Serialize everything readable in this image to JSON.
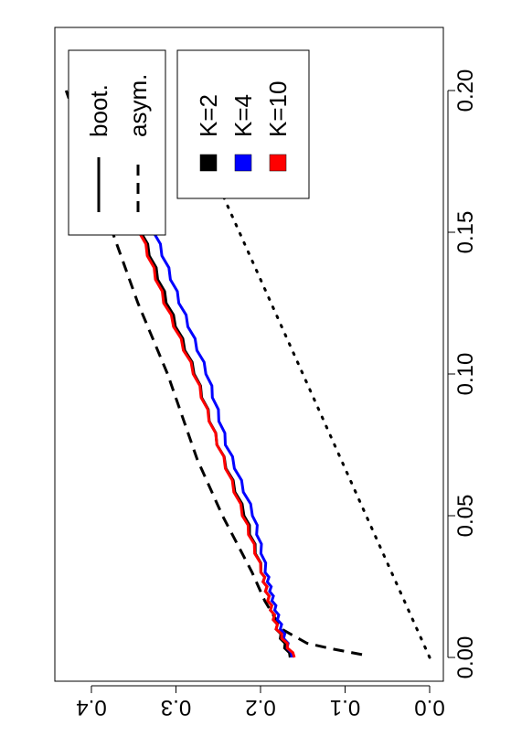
{
  "chart_data": {
    "type": "line",
    "orientation": "rotated 90 degrees clockwise",
    "title": "",
    "xlabel": "",
    "ylabel": "",
    "xlim": [
      0.0,
      0.2
    ],
    "ylim": [
      0.0,
      0.45
    ],
    "x_ticks": [
      "0.00",
      "0.05",
      "0.10",
      "0.15",
      "0.20"
    ],
    "y_ticks": [
      "0.0",
      "0.1",
      "0.2",
      "0.3",
      "0.4"
    ],
    "series": [
      {
        "name": "K=2",
        "style": "solid",
        "color": "#000000",
        "x": [
          0.0,
          0.01,
          0.02,
          0.03,
          0.05,
          0.075,
          0.1,
          0.125,
          0.15,
          0.175,
          0.2
        ],
        "y": [
          0.165,
          0.18,
          0.19,
          0.198,
          0.218,
          0.25,
          0.277,
          0.31,
          0.34,
          0.365,
          0.385
        ]
      },
      {
        "name": "K=4",
        "style": "solid",
        "color": "#0000ff",
        "x": [
          0.0,
          0.01,
          0.02,
          0.03,
          0.05,
          0.075,
          0.1,
          0.125,
          0.15,
          0.175,
          0.2
        ],
        "y": [
          0.163,
          0.175,
          0.185,
          0.193,
          0.208,
          0.24,
          0.263,
          0.295,
          0.325,
          0.352,
          0.375
        ]
      },
      {
        "name": "K=10",
        "style": "solid",
        "color": "#ff0000",
        "x": [
          0.0,
          0.01,
          0.02,
          0.03,
          0.05,
          0.075,
          0.1,
          0.125,
          0.15,
          0.175,
          0.2
        ],
        "y": [
          0.16,
          0.18,
          0.19,
          0.198,
          0.22,
          0.25,
          0.278,
          0.313,
          0.342,
          0.368,
          0.39
        ]
      },
      {
        "name": "asym.",
        "style": "dashed",
        "color": "#000000",
        "x": [
          0.001,
          0.003,
          0.005,
          0.01,
          0.02,
          0.03,
          0.05,
          0.07,
          0.1,
          0.125,
          0.15,
          0.175,
          0.2
        ],
        "y": [
          0.08,
          0.115,
          0.145,
          0.175,
          0.195,
          0.21,
          0.245,
          0.275,
          0.31,
          0.345,
          0.375,
          0.4,
          0.43
        ]
      },
      {
        "style": "dotted",
        "color": "#000000",
        "x": [
          0.0,
          0.05,
          0.1,
          0.15,
          0.2
        ],
        "y": [
          0.0,
          0.075,
          0.15,
          0.225,
          0.3
        ]
      }
    ],
    "legend": [
      {
        "label": "boot.",
        "style": "solid",
        "color": "#000000"
      },
      {
        "label": "asym.",
        "style": "dashed",
        "color": "#000000"
      },
      {
        "label": "K=2",
        "style": "swatch",
        "color": "#000000"
      },
      {
        "label": "K=4",
        "style": "swatch",
        "color": "#0000ff"
      },
      {
        "label": "K=10",
        "style": "swatch",
        "color": "#ff0000"
      }
    ],
    "legend_placement": "right (upper-left of rotated page)",
    "grid": false
  }
}
